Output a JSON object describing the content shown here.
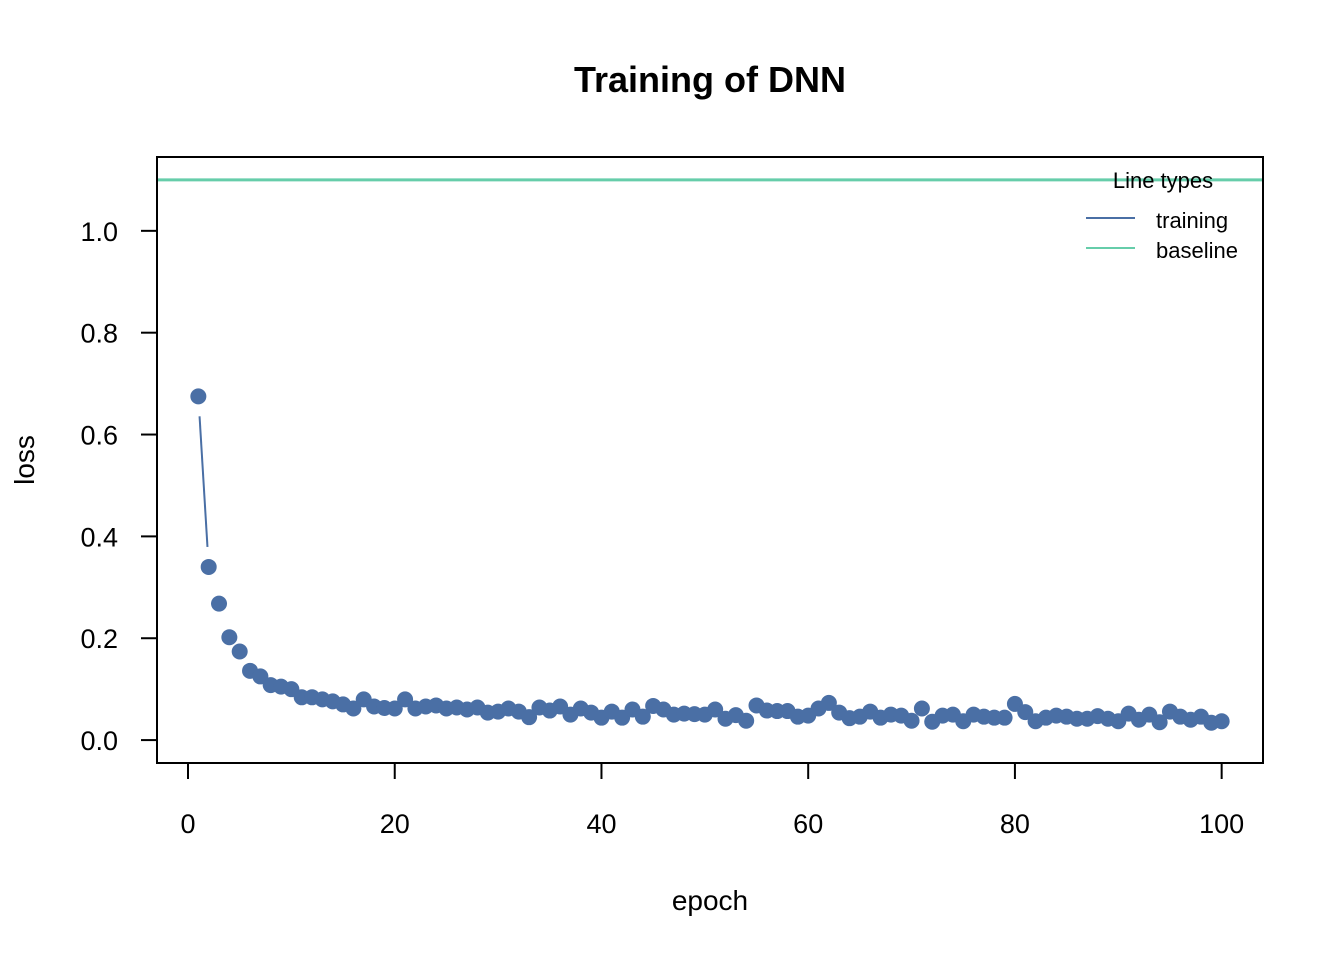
{
  "chart_data": {
    "type": "scatter",
    "title": "Training of DNN",
    "xlabel": "epoch",
    "ylabel": "loss",
    "xlim": [
      -3,
      104
    ],
    "ylim": [
      -0.045,
      1.145
    ],
    "x_ticks": [
      0,
      20,
      40,
      60,
      80,
      100
    ],
    "y_ticks": [
      0.0,
      0.2,
      0.4,
      0.6,
      0.8,
      1.0
    ],
    "x_tick_labels": [
      "0",
      "20",
      "40",
      "60",
      "80",
      "100"
    ],
    "y_tick_labels": [
      "0.0",
      "0.2",
      "0.4",
      "0.6",
      "0.8",
      "1.0"
    ],
    "grid": false,
    "legend": {
      "title": "Line types",
      "position": "top-right",
      "entries": [
        {
          "label": "training",
          "color": "#4a6fa5"
        },
        {
          "label": "baseline",
          "color": "#66cdaa"
        }
      ]
    },
    "series": [
      {
        "name": "training",
        "color": "#4a6fa5",
        "x": [
          1,
          2,
          3,
          4,
          5,
          6,
          7,
          8,
          9,
          10,
          11,
          12,
          13,
          14,
          15,
          16,
          17,
          18,
          19,
          20,
          21,
          22,
          23,
          24,
          25,
          26,
          27,
          28,
          29,
          30,
          31,
          32,
          33,
          34,
          35,
          36,
          37,
          38,
          39,
          40,
          41,
          42,
          43,
          44,
          45,
          46,
          47,
          48,
          49,
          50,
          51,
          52,
          53,
          54,
          55,
          56,
          57,
          58,
          59,
          60,
          61,
          62,
          63,
          64,
          65,
          66,
          67,
          68,
          69,
          70,
          71,
          72,
          73,
          74,
          75,
          76,
          77,
          78,
          79,
          80,
          81,
          82,
          83,
          84,
          85,
          86,
          87,
          88,
          89,
          90,
          91,
          92,
          93,
          94,
          95,
          96,
          97,
          98,
          99,
          100
        ],
        "y": [
          0.675,
          0.34,
          0.268,
          0.202,
          0.174,
          0.136,
          0.125,
          0.108,
          0.105,
          0.1,
          0.084,
          0.084,
          0.08,
          0.076,
          0.07,
          0.062,
          0.08,
          0.066,
          0.063,
          0.062,
          0.08,
          0.062,
          0.066,
          0.068,
          0.062,
          0.064,
          0.06,
          0.064,
          0.054,
          0.056,
          0.062,
          0.056,
          0.045,
          0.064,
          0.058,
          0.066,
          0.05,
          0.062,
          0.054,
          0.044,
          0.056,
          0.044,
          0.06,
          0.046,
          0.067,
          0.06,
          0.05,
          0.052,
          0.051,
          0.05,
          0.06,
          0.042,
          0.049,
          0.038,
          0.068,
          0.058,
          0.057,
          0.057,
          0.046,
          0.048,
          0.062,
          0.073,
          0.054,
          0.043,
          0.046,
          0.056,
          0.044,
          0.05,
          0.048,
          0.038,
          0.062,
          0.036,
          0.048,
          0.05,
          0.037,
          0.05,
          0.046,
          0.044,
          0.044,
          0.071,
          0.055,
          0.037,
          0.044,
          0.048,
          0.046,
          0.042,
          0.042,
          0.047,
          0.042,
          0.037,
          0.052,
          0.04,
          0.05,
          0.035,
          0.056,
          0.046,
          0.04,
          0.046,
          0.034,
          0.037
        ]
      },
      {
        "name": "baseline",
        "color": "#66cdaa",
        "y": 1.1
      }
    ]
  }
}
